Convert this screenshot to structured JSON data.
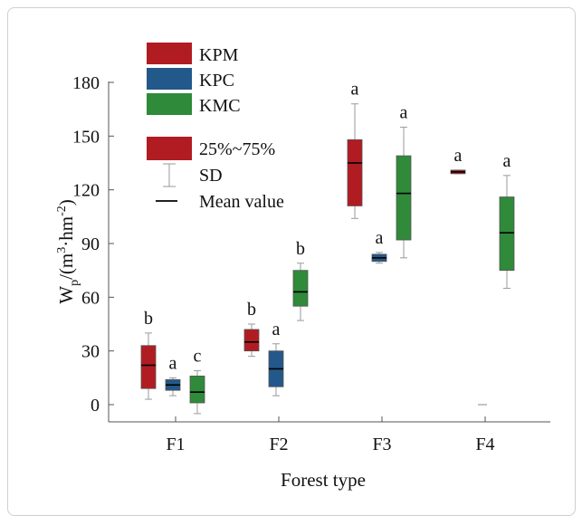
{
  "chart_data": {
    "type": "box",
    "xlabel": "Forest type",
    "ylabel": "W",
    "ylabel_sub": "p",
    "ylabel_rest": "/(m",
    "ylabel_sup1": "3",
    "ylabel_dot": "·hm",
    "ylabel_sup2": "-2",
    "ylabel_close": ")",
    "ylim": [
      -10,
      190
    ],
    "yticks": [
      0,
      30,
      60,
      90,
      120,
      150,
      180
    ],
    "categories": [
      "F1",
      "F2",
      "F3",
      "F4"
    ],
    "series": [
      {
        "name": "KPM",
        "color": "#b11c22",
        "boxes": [
          {
            "category": "F1",
            "low": 3,
            "q1": 9,
            "mean": 22,
            "q3": 33,
            "high": 40,
            "letter": "b"
          },
          {
            "category": "F2",
            "low": 27,
            "q1": 30,
            "mean": 35,
            "q3": 42,
            "high": 45,
            "letter": "b"
          },
          {
            "category": "F3",
            "low": 104,
            "q1": 111,
            "mean": 135,
            "q3": 148,
            "high": 168,
            "letter": "a"
          },
          {
            "category": "F4",
            "low": 129,
            "q1": 129,
            "mean": 130,
            "q3": 131,
            "high": 131,
            "letter": "a"
          }
        ]
      },
      {
        "name": "KPC",
        "color": "#23588a",
        "boxes": [
          {
            "category": "F1",
            "low": 5,
            "q1": 8,
            "mean": 11,
            "q3": 14,
            "high": 15,
            "letter": "a"
          },
          {
            "category": "F2",
            "low": 5,
            "q1": 10,
            "mean": 20,
            "q3": 30,
            "high": 34,
            "letter": "a"
          },
          {
            "category": "F3",
            "low": 79,
            "q1": 80,
            "mean": 82,
            "q3": 84,
            "high": 85,
            "letter": "a"
          },
          {
            "category": "F4",
            "low": 0,
            "q1": 0,
            "mean": 0,
            "q3": 0,
            "high": 0,
            "letter": ""
          }
        ]
      },
      {
        "name": "KMC",
        "color": "#2f8a3a",
        "boxes": [
          {
            "category": "F1",
            "low": -5,
            "q1": 1,
            "mean": 7,
            "q3": 16,
            "high": 19,
            "letter": "c"
          },
          {
            "category": "F2",
            "low": 47,
            "q1": 55,
            "mean": 63,
            "q3": 75,
            "high": 79,
            "letter": "b"
          },
          {
            "category": "F3",
            "low": 82,
            "q1": 92,
            "mean": 118,
            "q3": 139,
            "high": 155,
            "letter": "a"
          },
          {
            "category": "F4",
            "low": 65,
            "q1": 75,
            "mean": 96,
            "q3": 116,
            "high": 128,
            "letter": "a"
          }
        ]
      }
    ],
    "legend": {
      "position": "top-left",
      "range_label": "25%~75%",
      "sd_label": "SD",
      "mean_label": "Mean value"
    },
    "grid": false
  }
}
